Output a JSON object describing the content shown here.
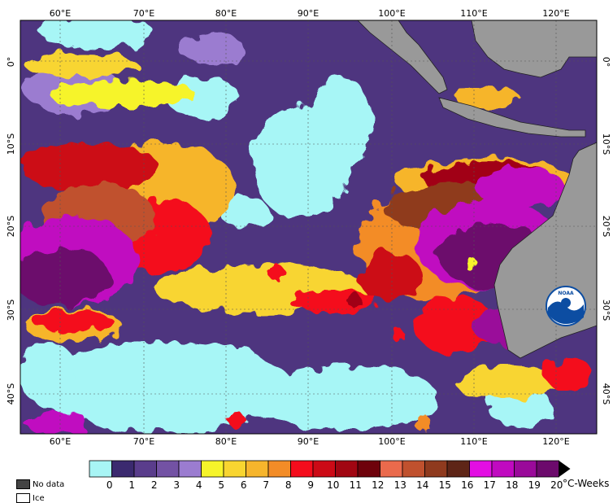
{
  "map": {
    "colors": {
      "land": "#999999",
      "ocean_low": "#a7f6f6",
      "ocean_bg": "#4e357f",
      "noaa_blue": "#0c4da2"
    },
    "lon_labels": [
      "60°E",
      "70°E",
      "80°E",
      "90°E",
      "100°E",
      "110°E",
      "120°E"
    ],
    "lat_labels": [
      "0°",
      "10°S",
      "20°S",
      "30°S",
      "40°S"
    ],
    "logo_text": "NOAA"
  },
  "legend": {
    "no_data_label": "No data",
    "ice_label": "Ice",
    "no_data_color": "#444444",
    "ice_color": "#ffffff"
  },
  "colorbar": {
    "unit_label": "°C-Weeks",
    "ticks": [
      "0",
      "1",
      "2",
      "3",
      "4",
      "5",
      "6",
      "7",
      "8",
      "9",
      "10",
      "11",
      "12",
      "13",
      "14",
      "15",
      "16",
      "17",
      "18",
      "19",
      "20"
    ],
    "colors": [
      "#a8f5f5",
      "#3b2a6f",
      "#5a3d8c",
      "#7352a4",
      "#9b7cd0",
      "#f6f42a",
      "#f8d530",
      "#f6b52c",
      "#f38c27",
      "#f40c1c",
      "#cc0a16",
      "#a10612",
      "#6e020b",
      "#ea6a4c",
      "#c0512e",
      "#8f3a1e",
      "#5e2517",
      "#e30ee3",
      "#c00ac0",
      "#9a0a9a",
      "#6c0a6c"
    ]
  }
}
